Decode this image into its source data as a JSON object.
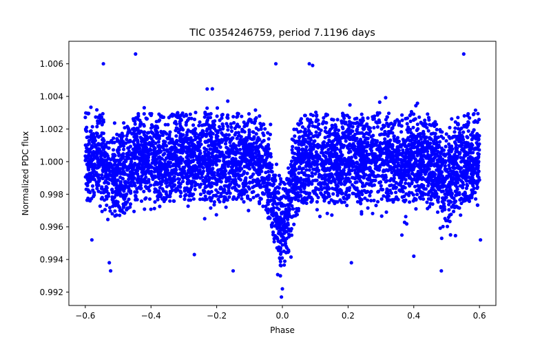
{
  "chart_data": {
    "type": "scatter",
    "title": "TIC 0354246759, period 7.1196 days",
    "xlabel": "Phase",
    "ylabel": "Normalized PDC flux",
    "xlim": [
      -0.65,
      0.65
    ],
    "ylim": [
      0.99118,
      1.00738
    ],
    "xticks": [
      -0.6,
      -0.4,
      -0.2,
      0.0,
      0.2,
      0.4,
      0.6
    ],
    "xtick_labels": [
      "−0.6",
      "−0.4",
      "−0.2",
      "0.0",
      "0.2",
      "0.4",
      "0.6"
    ],
    "yticks": [
      0.992,
      0.994,
      0.996,
      0.998,
      1.0,
      1.002,
      1.004,
      1.006
    ],
    "ytick_labels": [
      "0.992",
      "0.994",
      "0.996",
      "0.998",
      "1.000",
      "1.002",
      "1.004",
      "1.006"
    ],
    "grid": false,
    "series": [
      {
        "name": "PDC flux",
        "color": "#0000ff",
        "marker": "circle",
        "phase_range": [
          -0.6,
          0.6
        ],
        "baseline": 1.0,
        "core_band": [
          0.9975,
          1.003
        ],
        "scatter_sigma": 0.0012,
        "transits": [
          {
            "center": 0.0,
            "width": 0.025,
            "depth": 0.004
          },
          {
            "center": -0.5,
            "width": 0.02,
            "depth": 0.0012
          },
          {
            "center": 0.5,
            "width": 0.02,
            "depth": 0.0012
          }
        ],
        "outliers": [
          [
            -0.447,
            1.0066
          ],
          [
            -0.545,
            1.006
          ],
          [
            -0.58,
            0.9952
          ],
          [
            -0.523,
            0.9933
          ],
          [
            -0.527,
            0.9938
          ],
          [
            -0.15,
            0.9933
          ],
          [
            -0.02,
            1.006
          ],
          [
            0.082,
            1.006
          ],
          [
            0.092,
            1.0059
          ],
          [
            0.552,
            1.0066
          ],
          [
            0.484,
            0.9933
          ],
          [
            0.21,
            0.9938
          ],
          [
            -0.003,
            0.9917
          ],
          [
            0.0,
            0.9922
          ],
          [
            -0.006,
            0.993
          ],
          [
            0.4,
            0.9942
          ],
          [
            0.603,
            0.9952
          ],
          [
            -0.268,
            0.9943
          ]
        ]
      }
    ]
  }
}
